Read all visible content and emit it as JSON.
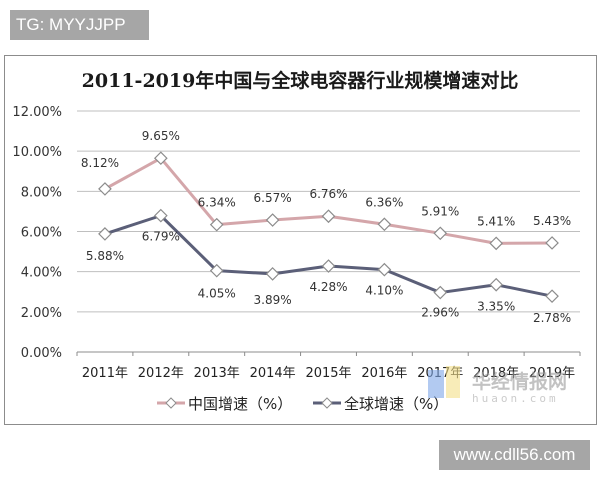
{
  "badge_top": "TG: MYYJJPP",
  "badge_bottom": "www.cdll56.com",
  "watermark": {
    "name": "华经情报网",
    "domain": "huaon.com"
  },
  "chart_data": {
    "type": "line",
    "title": "2011-2019年中国与全球电容器行业规模增速对比",
    "xlabel": "",
    "ylabel": "",
    "categories": [
      "2011年",
      "2012年",
      "2013年",
      "2014年",
      "2015年",
      "2016年",
      "2017年",
      "2018年",
      "2019年"
    ],
    "ylim": [
      0,
      12
    ],
    "yticks": [
      "0.00%",
      "2.00%",
      "4.00%",
      "6.00%",
      "8.00%",
      "10.00%",
      "12.00%"
    ],
    "grid": true,
    "legend_position": "bottom",
    "series": [
      {
        "name": "中国增速（%）",
        "color": "#d4a6aa",
        "values": [
          8.12,
          9.65,
          6.34,
          6.57,
          6.76,
          6.36,
          5.91,
          5.41,
          5.43
        ],
        "labels": [
          "8.12%",
          "9.65%",
          "6.34%",
          "6.57%",
          "6.76%",
          "6.36%",
          "5.91%",
          "5.41%",
          "5.43%"
        ]
      },
      {
        "name": "全球增速（%）",
        "color": "#5b5f78",
        "values": [
          5.88,
          6.79,
          4.05,
          3.89,
          4.28,
          4.1,
          2.96,
          3.35,
          2.78
        ],
        "labels": [
          "5.88%",
          "6.79%",
          "4.05%",
          "3.89%",
          "4.28%",
          "4.10%",
          "2.96%",
          "3.35%",
          "2.78%"
        ]
      }
    ]
  }
}
